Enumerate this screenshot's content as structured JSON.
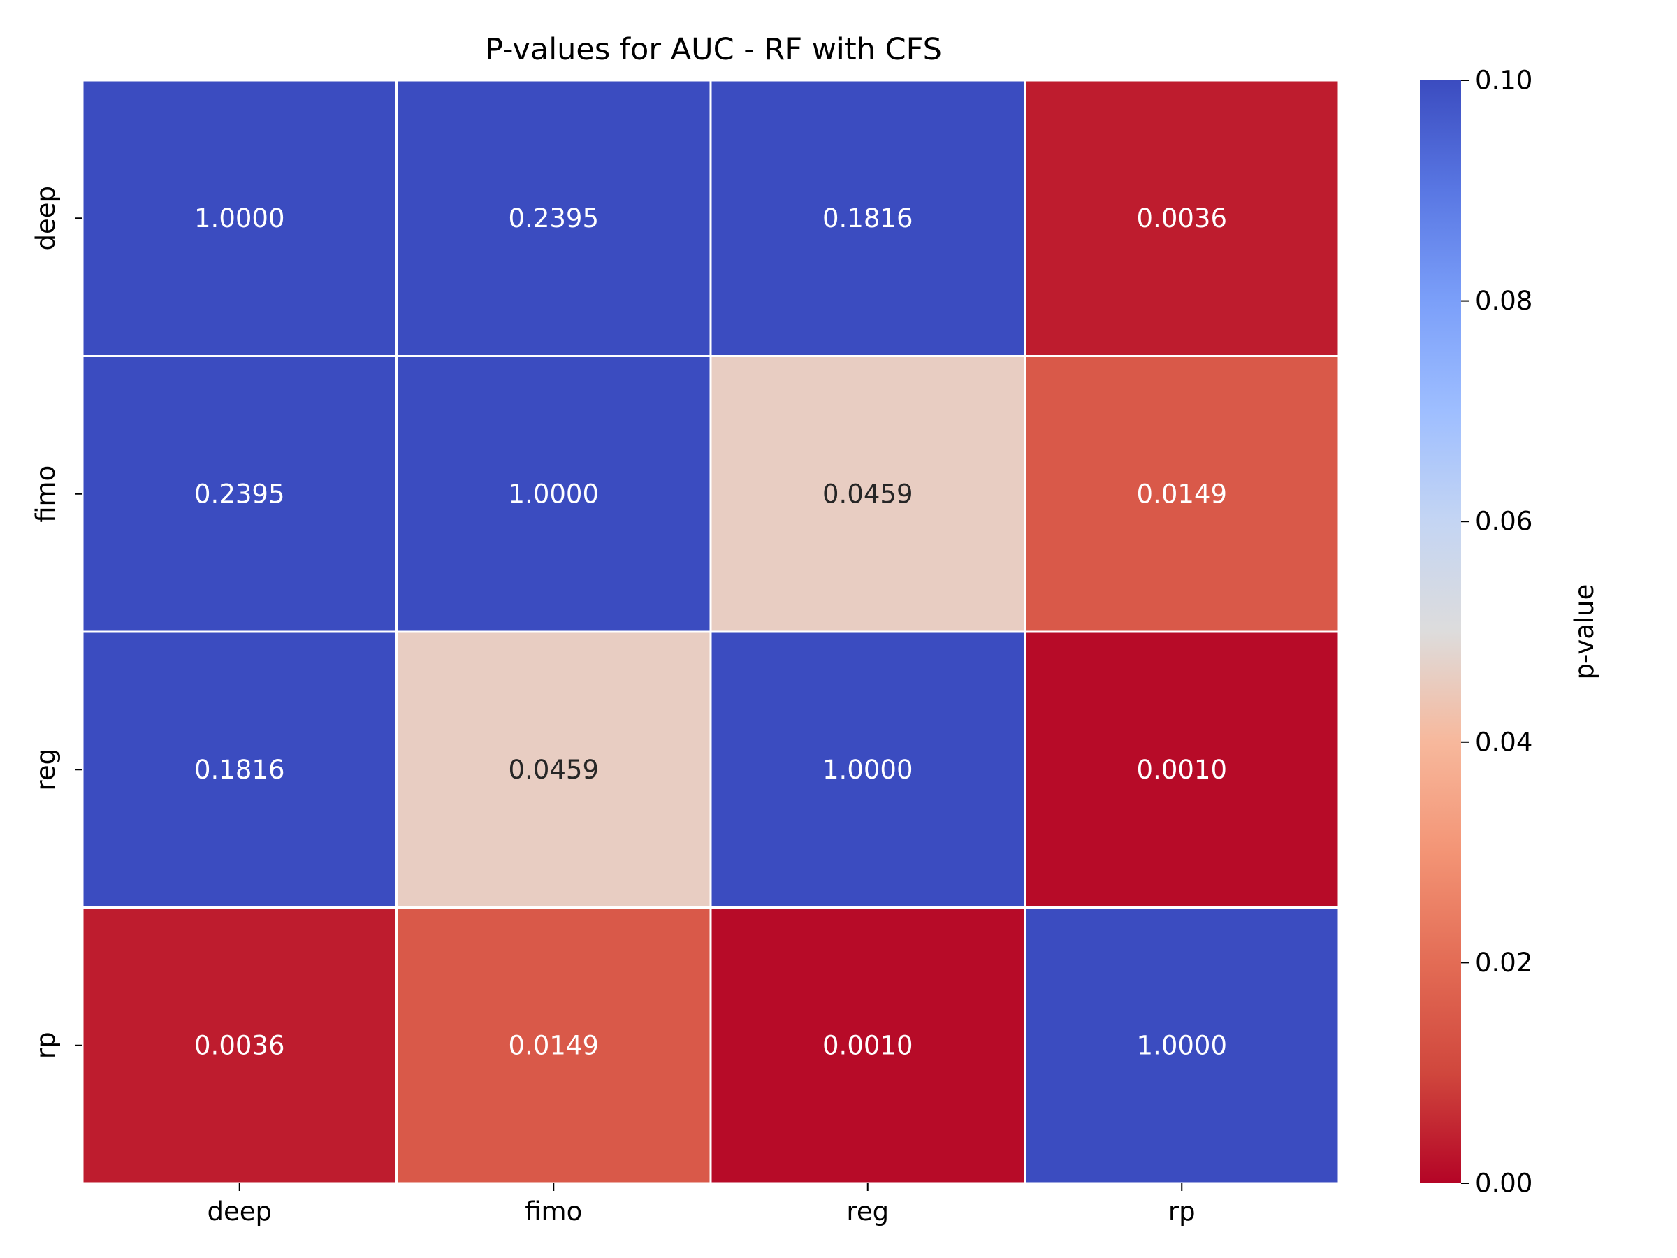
{
  "chart_data": {
    "type": "heatmap",
    "title": "P-values for AUC - RF with CFS",
    "xlabel": "",
    "ylabel": "",
    "x_categories": [
      "deep",
      "fimo",
      "reg",
      "rp"
    ],
    "y_categories": [
      "deep",
      "fimo",
      "reg",
      "rp"
    ],
    "values": [
      [
        1.0,
        0.2395,
        0.1816,
        0.0036
      ],
      [
        0.2395,
        1.0,
        0.0459,
        0.0149
      ],
      [
        0.1816,
        0.0459,
        1.0,
        0.001
      ],
      [
        0.0036,
        0.0149,
        0.001,
        1.0
      ]
    ],
    "cell_labels": [
      [
        "1.0000",
        "0.2395",
        "0.1816",
        "0.0036"
      ],
      [
        "0.2395",
        "1.0000",
        "0.0459",
        "0.0149"
      ],
      [
        "0.1816",
        "0.0459",
        "1.0000",
        "0.0010"
      ],
      [
        "0.0036",
        "0.0149",
        "0.0010",
        "1.0000"
      ]
    ],
    "colormap": "coolwarm_r",
    "colorbar": {
      "label": "p-value",
      "vmin": 0.0,
      "vmax": 0.1,
      "ticks": [
        0.0,
        0.02,
        0.04,
        0.06,
        0.08,
        0.1
      ],
      "tick_labels": [
        "0.00",
        "0.02",
        "0.04",
        "0.06",
        "0.08",
        "0.10"
      ],
      "placement": "right"
    },
    "colors": {
      "high": "#3b4cc0",
      "low": "#b40426",
      "cell_border": "#ffffff",
      "dark_text": "#262626",
      "light_text": "#ffffff"
    }
  }
}
